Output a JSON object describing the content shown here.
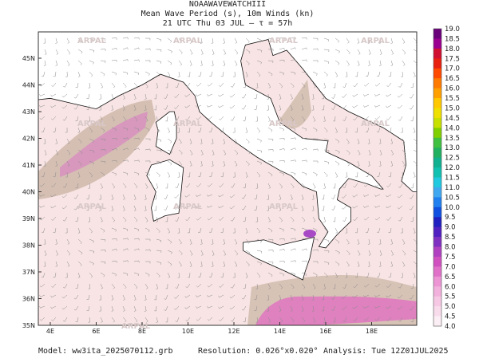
{
  "header": {
    "title": "NOAAWAVEWATCHIII",
    "subtitle": "Mean Wave Period (s), 10m Winds (kn)",
    "time": "21 UTC Thu 03 JUL  –  τ = 57h"
  },
  "map": {
    "lat_labels": [
      "45N",
      "44N",
      "43N",
      "42N",
      "41N",
      "40N",
      "39N",
      "38N",
      "37N",
      "36N",
      "35N"
    ],
    "lon_labels": [
      "4E",
      "6E",
      "8E",
      "10E",
      "12E",
      "14E",
      "16E",
      "18E"
    ],
    "watermarks": [
      "ARPAL",
      "ARPAL",
      "ARPAL",
      "ARPAL",
      "ARPAL",
      "ARPAL",
      "ARPAL",
      "ARPAL",
      "ARPAL",
      "ARPAL",
      "ARPAL",
      "ARPAL"
    ]
  },
  "colorbar": {
    "labels": [
      "19.0",
      "18.5",
      "18.0",
      "17.5",
      "17.0",
      "16.5",
      "16.0",
      "15.5",
      "15.0",
      "14.5",
      "14.0",
      "13.5",
      "13.0",
      "12.5",
      "12.0",
      "11.5",
      "11.0",
      "10.5",
      "10.0",
      "9.5",
      "9.0",
      "8.5",
      "8.0",
      "7.5",
      "7.0",
      "6.5",
      "6.0",
      "5.5",
      "5.0",
      "4.5",
      "4.0"
    ]
  },
  "footer": {
    "model": "Model: ww3ita_2025070112.grb",
    "resolution": "Resolution: 0.026°x0.020°",
    "analysis": "Analysis: Tue 12Z01JUL2025"
  }
}
